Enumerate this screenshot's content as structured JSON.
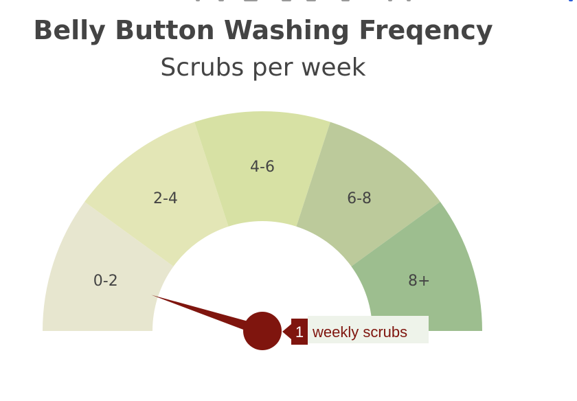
{
  "chart_data": {
    "type": "gauge",
    "title": "Belly Button Washing Freqency",
    "subtitle": "Scrubs per week",
    "min": 0,
    "max": 10,
    "value": 1,
    "segments": [
      {
        "label": "0-2",
        "from": 0,
        "to": 2,
        "color": "#e7e6cf"
      },
      {
        "label": "2-4",
        "from": 2,
        "to": 4,
        "color": "#e3e6b6"
      },
      {
        "label": "4-6",
        "from": 4,
        "to": 6,
        "color": "#d7e1a4"
      },
      {
        "label": "6-8",
        "from": 6,
        "to": 8,
        "color": "#bcca9b"
      },
      {
        "label": "8+",
        "from": 8,
        "to": 10,
        "color": "#9dbe8f"
      }
    ],
    "value_badge": "1",
    "value_label": "weekly scrubs",
    "needle_color": "#7f150e"
  }
}
